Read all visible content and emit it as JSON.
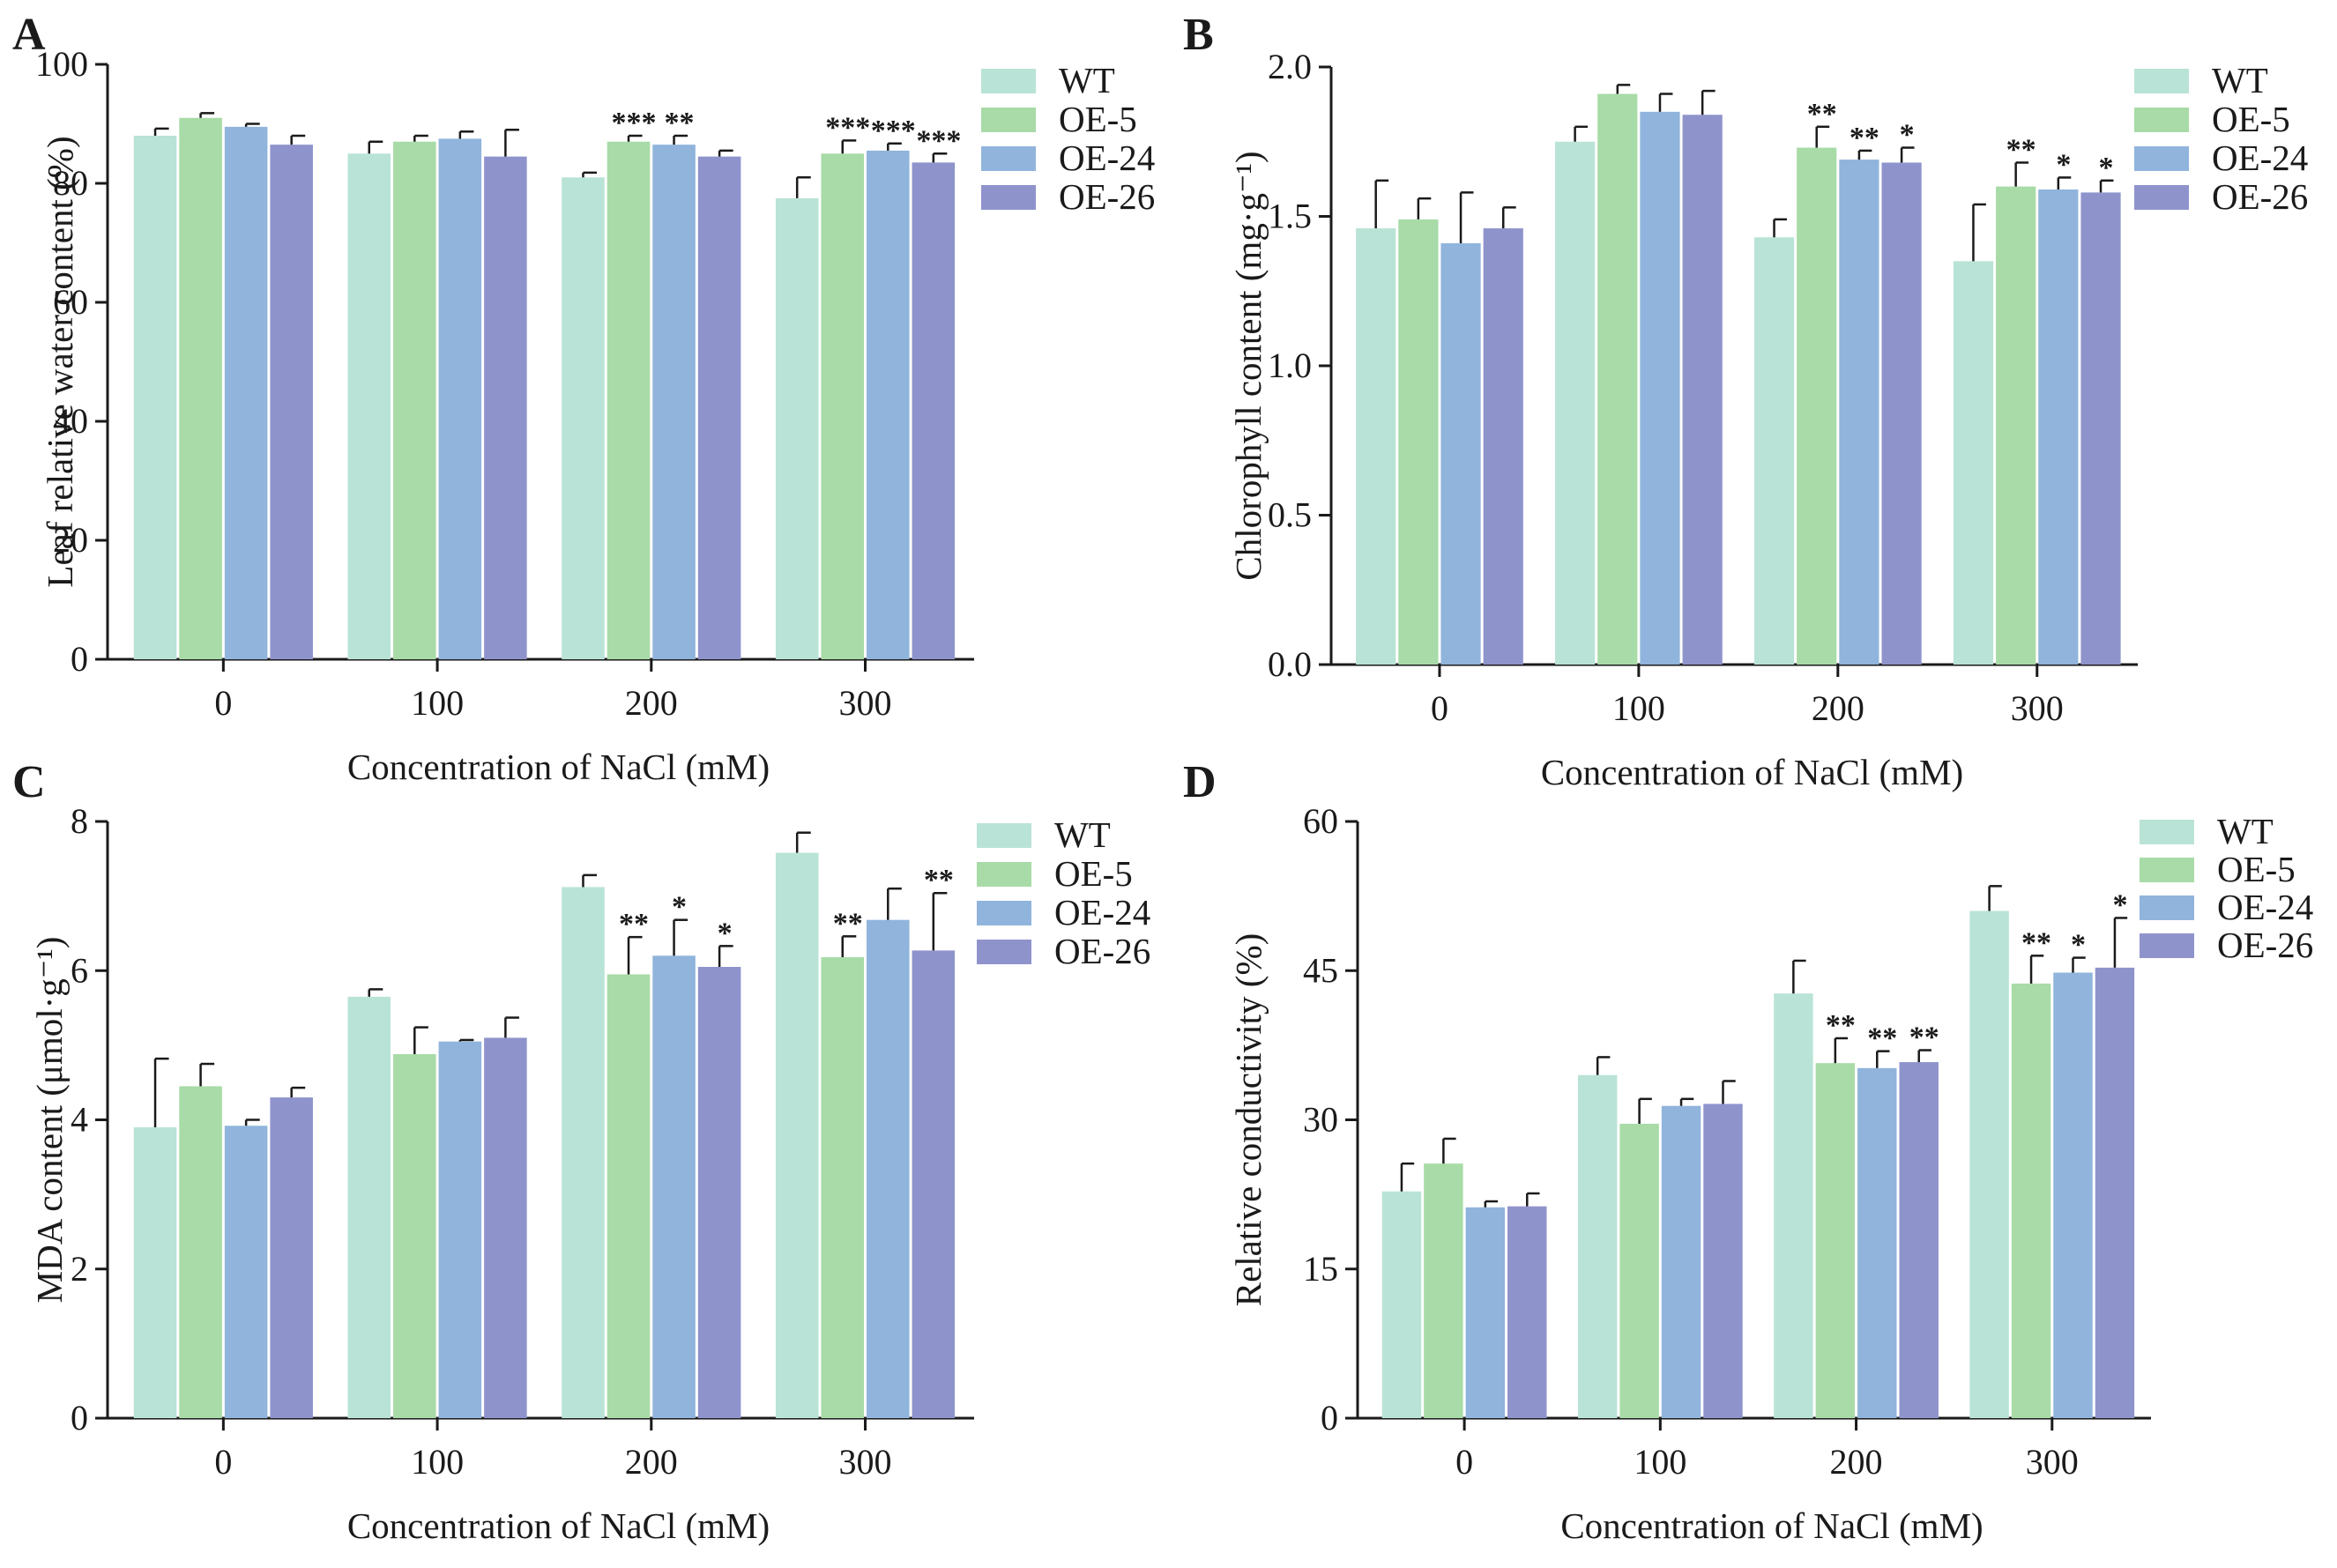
{
  "figure": {
    "series_colors": [
      "#b9e3d6",
      "#a8dba7",
      "#90b4dc",
      "#8f93cc"
    ],
    "error_bar_color": "#1a1a1a"
  },
  "chart_data": [
    {
      "type": "bar",
      "panel": "A",
      "title": "",
      "xlabel": "Concentration of NaCl (mM)",
      "ylabel": "Leaf relative water content (%)",
      "ylim": [
        0,
        100
      ],
      "yticks": [
        "0",
        "20",
        "40",
        "60",
        "80",
        "100"
      ],
      "categories": [
        "0",
        "100",
        "200",
        "300"
      ],
      "legend_position": "top-right",
      "series": [
        {
          "name": "WT",
          "values": [
            88,
            85,
            81,
            77.5
          ],
          "errors": [
            1.2,
            2,
            0.8,
            3.5
          ],
          "sig": [
            "",
            "",
            "",
            ""
          ]
        },
        {
          "name": "OE-5",
          "values": [
            91,
            87,
            87,
            85
          ],
          "errors": [
            0.8,
            1,
            1,
            2.2
          ],
          "sig": [
            "",
            "",
            "***",
            "***"
          ]
        },
        {
          "name": "OE-24",
          "values": [
            89.5,
            87.5,
            86.5,
            85.5
          ],
          "errors": [
            0.5,
            1.2,
            1.5,
            1.2
          ],
          "sig": [
            "",
            "",
            "**",
            "***"
          ]
        },
        {
          "name": "OE-26",
          "values": [
            86.5,
            84.5,
            84.5,
            83.5
          ],
          "errors": [
            1.5,
            4.5,
            1,
            1.5
          ],
          "sig": [
            "",
            "",
            "",
            "***"
          ]
        }
      ]
    },
    {
      "type": "bar",
      "panel": "B",
      "title": "",
      "xlabel": "Concentration of NaCl (mM)",
      "ylabel": "Chlorophyll content (mg·g⁻¹)",
      "ylim": [
        0,
        2
      ],
      "yticks": [
        "0.0",
        "0.5",
        "1.0",
        "1.5",
        "2.0"
      ],
      "categories": [
        "0",
        "100",
        "200",
        "300"
      ],
      "legend_position": "top-right",
      "series": [
        {
          "name": "WT",
          "values": [
            1.46,
            1.75,
            1.43,
            1.35
          ],
          "errors": [
            0.16,
            0.05,
            0.06,
            0.19
          ],
          "sig": [
            "",
            "",
            "",
            ""
          ]
        },
        {
          "name": "OE-5",
          "values": [
            1.49,
            1.91,
            1.73,
            1.6
          ],
          "errors": [
            0.07,
            0.03,
            0.07,
            0.08
          ],
          "sig": [
            "",
            "",
            "**",
            "**"
          ]
        },
        {
          "name": "OE-24",
          "values": [
            1.41,
            1.85,
            1.69,
            1.59
          ],
          "errors": [
            0.17,
            0.06,
            0.03,
            0.04
          ],
          "sig": [
            "",
            "",
            "**",
            "*"
          ]
        },
        {
          "name": "OE-26",
          "values": [
            1.46,
            1.84,
            1.68,
            1.58
          ],
          "errors": [
            0.07,
            0.08,
            0.05,
            0.04
          ],
          "sig": [
            "",
            "",
            "*",
            "*"
          ]
        }
      ]
    },
    {
      "type": "bar",
      "panel": "C",
      "title": "",
      "xlabel": "Concentration of NaCl (mM)",
      "ylabel": "MDA content (μmol·g⁻¹)",
      "ylim": [
        0,
        8
      ],
      "yticks": [
        "0",
        "2",
        "4",
        "6",
        "8"
      ],
      "categories": [
        "0",
        "100",
        "200",
        "300"
      ],
      "legend_position": "top-right",
      "series": [
        {
          "name": "WT",
          "values": [
            3.9,
            5.65,
            7.12,
            7.58
          ],
          "errors": [
            0.92,
            0.1,
            0.16,
            0.27
          ],
          "sig": [
            "",
            "",
            "",
            ""
          ]
        },
        {
          "name": "OE-5",
          "values": [
            4.45,
            4.88,
            5.95,
            6.18
          ],
          "errors": [
            0.3,
            0.36,
            0.5,
            0.28
          ],
          "sig": [
            "",
            "",
            "**",
            "**"
          ]
        },
        {
          "name": "OE-24",
          "values": [
            3.92,
            5.05,
            6.2,
            6.68
          ],
          "errors": [
            0.08,
            0.02,
            0.48,
            0.42
          ],
          "sig": [
            "",
            "",
            "*",
            ""
          ]
        },
        {
          "name": "OE-26",
          "values": [
            4.3,
            5.1,
            6.05,
            6.27
          ],
          "errors": [
            0.13,
            0.27,
            0.28,
            0.77
          ],
          "sig": [
            "",
            "",
            "*",
            "**"
          ]
        }
      ]
    },
    {
      "type": "bar",
      "panel": "D",
      "title": "",
      "xlabel": "Concentration of NaCl (mM)",
      "ylabel": "Relative conductivity (%)",
      "ylim": [
        0,
        60
      ],
      "yticks": [
        "0",
        "15",
        "30",
        "45",
        "60"
      ],
      "categories": [
        "0",
        "100",
        "200",
        "300"
      ],
      "legend_position": "top-right",
      "series": [
        {
          "name": "WT",
          "values": [
            22.8,
            34.5,
            42.7,
            51
          ],
          "errors": [
            2.8,
            1.8,
            3.3,
            2.5
          ],
          "sig": [
            "",
            "",
            "",
            ""
          ]
        },
        {
          "name": "OE-5",
          "values": [
            25.6,
            29.6,
            35.7,
            43.7
          ],
          "errors": [
            2.5,
            2.5,
            2.5,
            2.8
          ],
          "sig": [
            "",
            "",
            "**",
            "**"
          ]
        },
        {
          "name": "OE-24",
          "values": [
            21.2,
            31.4,
            35.2,
            44.8
          ],
          "errors": [
            0.6,
            0.7,
            1.7,
            1.5
          ],
          "sig": [
            "",
            "",
            "**",
            "*"
          ]
        },
        {
          "name": "OE-26",
          "values": [
            21.3,
            31.6,
            35.8,
            45.3
          ],
          "errors": [
            1.3,
            2.3,
            1.2,
            5
          ],
          "sig": [
            "",
            "",
            "**",
            "*"
          ]
        }
      ]
    }
  ]
}
